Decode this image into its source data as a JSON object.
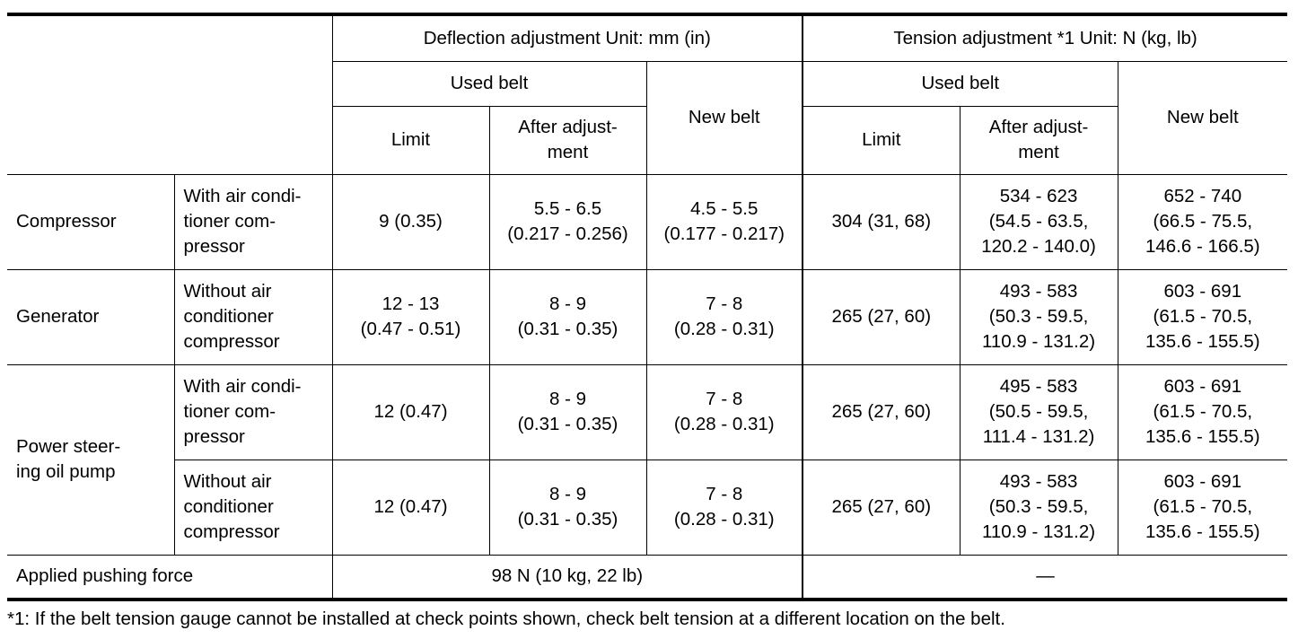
{
  "headers": {
    "deflection": "Deflection adjustment   Unit: mm (in)",
    "tension": "Tension adjustment *1    Unit: N (kg, lb)",
    "used_belt": "Used belt",
    "new_belt": "New belt",
    "limit": "Limit",
    "after_adjustment": "After adjust-\nment"
  },
  "rows": [
    {
      "component": "Compressor",
      "condition": "With air condi-\ntioner com-\npressor",
      "def_limit": "9 (0.35)",
      "def_after": "5.5 - 6.5\n(0.217 - 0.256)",
      "def_new": "4.5 - 5.5\n(0.177 - 0.217)",
      "ten_limit": "304 (31, 68)",
      "ten_after": "534 - 623\n(54.5 - 63.5,\n120.2 - 140.0)",
      "ten_new": "652 - 740\n(66.5 - 75.5,\n146.6 - 166.5)"
    },
    {
      "component": "Generator",
      "condition": "Without air\nconditioner\ncompressor",
      "def_limit": "12 - 13\n(0.47 - 0.51)",
      "def_after": "8 - 9\n(0.31 - 0.35)",
      "def_new": "7 - 8\n(0.28 - 0.31)",
      "ten_limit": "265 (27, 60)",
      "ten_after": "493 - 583\n(50.3 - 59.5,\n110.9 - 131.2)",
      "ten_new": "603 - 691\n(61.5 - 70.5,\n135.6 - 155.5)"
    },
    {
      "component": "Power steer-\ning oil pump",
      "condition": "With air condi-\ntioner com-\npressor",
      "def_limit": "12 (0.47)",
      "def_after": "8 - 9\n(0.31 - 0.35)",
      "def_new": "7 - 8\n(0.28 - 0.31)",
      "ten_limit": "265 (27, 60)",
      "ten_after": "495 - 583\n(50.5 - 59.5,\n111.4 - 131.2)",
      "ten_new": "603 - 691\n(61.5 - 70.5,\n135.6 - 155.5)"
    },
    {
      "condition": "Without air\nconditioner\ncompressor",
      "def_limit": "12 (0.47)",
      "def_after": "8 - 9\n(0.31 - 0.35)",
      "def_new": "7 - 8\n(0.28 - 0.31)",
      "ten_limit": "265 (27, 60)",
      "ten_after": "493 - 583\n(50.3 - 59.5,\n110.9 - 131.2)",
      "ten_new": "603 - 691\n(61.5 - 70.5,\n135.6 - 155.5)"
    }
  ],
  "pushing_force": {
    "label": "Applied pushing force",
    "deflection": "98 N (10 kg, 22 lb)",
    "tension": "—"
  },
  "footnote": "*1: If the belt tension gauge cannot be installed at check points shown, check belt tension at a different location on the belt."
}
